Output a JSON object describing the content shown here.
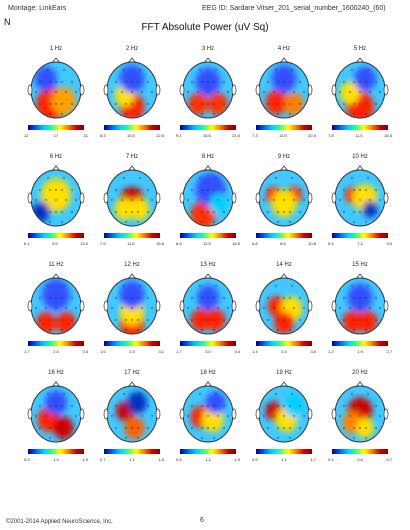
{
  "header": {
    "montage": "Montage: LinkEars",
    "eeg_id": "EEG ID: Sardare Vitser_201_serial_number_1600240_(60)",
    "marker": "N",
    "title": "FFT Absolute Power (uV Sq)"
  },
  "maps": [
    {
      "label": "1 Hz",
      "scale": [
        "12",
        "",
        "17",
        "",
        "21"
      ],
      "spots": [
        {
          "c": "#ff2000",
          "a": 0.4,
          "b": 0.75,
          "r": 0.3
        },
        {
          "c": "#ffa000",
          "a": 0.65,
          "b": 0.7,
          "r": 0.25
        },
        {
          "c": "#3050ff",
          "a": 0.3,
          "b": 0.3,
          "r": 0.22
        }
      ]
    },
    {
      "label": "2 Hz",
      "scale": [
        "8.3",
        "",
        "10.5",
        "",
        "12.6"
      ],
      "spots": [
        {
          "c": "#ff2000",
          "a": 0.5,
          "b": 0.8,
          "r": 0.25
        },
        {
          "c": "#ffe000",
          "a": 0.35,
          "b": 0.6,
          "r": 0.2
        },
        {
          "c": "#3050ff",
          "a": 0.5,
          "b": 0.3,
          "r": 0.25
        }
      ]
    },
    {
      "label": "3 Hz",
      "scale": [
        "9.1",
        "",
        "15.6",
        "",
        "21.0"
      ],
      "spots": [
        {
          "c": "#ff3000",
          "a": 0.3,
          "b": 0.75,
          "r": 0.2
        },
        {
          "c": "#ff3000",
          "a": 0.7,
          "b": 0.75,
          "r": 0.2
        },
        {
          "c": "#3050ff",
          "a": 0.5,
          "b": 0.35,
          "r": 0.25
        }
      ]
    },
    {
      "label": "4 Hz",
      "scale": [
        "7.3",
        "",
        "13.9",
        "",
        "20.5"
      ],
      "spots": [
        {
          "c": "#ff2000",
          "a": 0.35,
          "b": 0.72,
          "r": 0.22
        },
        {
          "c": "#ff8000",
          "a": 0.7,
          "b": 0.75,
          "r": 0.2
        },
        {
          "c": "#3050ff",
          "a": 0.5,
          "b": 0.3,
          "r": 0.25
        }
      ]
    },
    {
      "label": "5 Hz",
      "scale": [
        "7.8",
        "",
        "11.5",
        "",
        "15.5"
      ],
      "spots": [
        {
          "c": "#ff2000",
          "a": 0.5,
          "b": 0.8,
          "r": 0.28
        },
        {
          "c": "#ffe000",
          "a": 0.3,
          "b": 0.55,
          "r": 0.2
        },
        {
          "c": "#3050ff",
          "a": 0.6,
          "b": 0.3,
          "r": 0.22
        }
      ]
    },
    {
      "label": "6 Hz",
      "scale": [
        "6.1",
        "",
        "9.5",
        "",
        "13.0"
      ],
      "spots": [
        {
          "c": "#ff0000",
          "a": 0.5,
          "b": 0.45,
          "r": 0.16
        },
        {
          "c": "#ffe000",
          "a": 0.5,
          "b": 0.45,
          "r": 0.3
        },
        {
          "c": "#0030c0",
          "a": 0.2,
          "b": 0.75,
          "r": 0.18
        }
      ]
    },
    {
      "label": "7 Hz",
      "scale": [
        "7.6",
        "",
        "11.6",
        "",
        "15.6"
      ],
      "spots": [
        {
          "c": "#d00000",
          "a": 0.5,
          "b": 0.55,
          "r": 0.25
        },
        {
          "c": "#ffe000",
          "a": 0.35,
          "b": 0.7,
          "r": 0.2
        },
        {
          "c": "#ffe000",
          "a": 0.65,
          "b": 0.7,
          "r": 0.2
        }
      ]
    },
    {
      "label": "8 Hz",
      "scale": [
        "8.6",
        "",
        "12.5",
        "",
        "16.5"
      ],
      "spots": [
        {
          "c": "#ff3000",
          "a": 0.4,
          "b": 0.8,
          "r": 0.25
        },
        {
          "c": "#3050ff",
          "a": 0.55,
          "b": 0.35,
          "r": 0.3
        },
        {
          "c": "#00d0ff",
          "a": 0.7,
          "b": 0.6,
          "r": 0.18
        }
      ]
    },
    {
      "label": "9 Hz",
      "scale": [
        "6.8",
        "",
        "8.8",
        "",
        "10.8"
      ],
      "spots": [
        {
          "c": "#ff2000",
          "a": 0.3,
          "b": 0.45,
          "r": 0.16
        },
        {
          "c": "#ff2000",
          "a": 0.7,
          "b": 0.45,
          "r": 0.16
        },
        {
          "c": "#ffe000",
          "a": 0.5,
          "b": 0.6,
          "r": 0.25
        }
      ]
    },
    {
      "label": "10 Hz",
      "scale": [
        "5.4",
        "",
        "7.2",
        "",
        "9.0"
      ],
      "spots": [
        {
          "c": "#ff2000",
          "a": 0.35,
          "b": 0.45,
          "r": 0.15
        },
        {
          "c": "#ffe000",
          "a": 0.6,
          "b": 0.5,
          "r": 0.25
        },
        {
          "c": "#0030c0",
          "a": 0.7,
          "b": 0.7,
          "r": 0.15
        }
      ]
    },
    {
      "label": "11 Hz",
      "scale": [
        "1.7",
        "",
        "2.5",
        "",
        "3.4"
      ],
      "spots": [
        {
          "c": "#ff2000",
          "a": 0.3,
          "b": 0.8,
          "r": 0.2
        },
        {
          "c": "#ff2000",
          "a": 0.7,
          "b": 0.8,
          "r": 0.2
        },
        {
          "c": "#3050ff",
          "a": 0.5,
          "b": 0.3,
          "r": 0.28
        }
      ]
    },
    {
      "label": "12 Hz",
      "scale": [
        "1.6",
        "",
        "2.3",
        "",
        "3.1"
      ],
      "spots": [
        {
          "c": "#ff2000",
          "a": 0.5,
          "b": 0.82,
          "r": 0.25
        },
        {
          "c": "#ffe000",
          "a": 0.5,
          "b": 0.6,
          "r": 0.25
        },
        {
          "c": "#3050ff",
          "a": 0.5,
          "b": 0.3,
          "r": 0.25
        }
      ]
    },
    {
      "label": "13 Hz",
      "scale": [
        "1.7",
        "",
        "3.0",
        "",
        "4.4"
      ],
      "spots": [
        {
          "c": "#ff2000",
          "a": 0.35,
          "b": 0.75,
          "r": 0.2
        },
        {
          "c": "#ff2000",
          "a": 0.65,
          "b": 0.75,
          "r": 0.2
        },
        {
          "c": "#3050ff",
          "a": 0.5,
          "b": 0.35,
          "r": 0.22
        }
      ]
    },
    {
      "label": "14 Hz",
      "scale": [
        "1.4",
        "",
        "2.4",
        "",
        "3.5"
      ],
      "spots": [
        {
          "c": "#ff2000",
          "a": 0.35,
          "b": 0.5,
          "r": 0.18
        },
        {
          "c": "#ffe000",
          "a": 0.65,
          "b": 0.55,
          "r": 0.22
        },
        {
          "c": "#ff2000",
          "a": 0.5,
          "b": 0.8,
          "r": 0.2
        }
      ]
    },
    {
      "label": "15 Hz",
      "scale": [
        "1.2",
        "",
        "1.9",
        "",
        "2.7"
      ],
      "spots": [
        {
          "c": "#ff2000",
          "a": 0.35,
          "b": 0.78,
          "r": 0.2
        },
        {
          "c": "#ff2000",
          "a": 0.65,
          "b": 0.78,
          "r": 0.2
        },
        {
          "c": "#3050ff",
          "a": 0.5,
          "b": 0.35,
          "r": 0.25
        }
      ]
    },
    {
      "label": "16 Hz",
      "scale": [
        "0.9",
        "",
        "1.4",
        "",
        "1.9"
      ],
      "spots": [
        {
          "c": "#ff2000",
          "a": 0.35,
          "b": 0.6,
          "r": 0.22
        },
        {
          "c": "#d00000",
          "a": 0.65,
          "b": 0.75,
          "r": 0.2
        },
        {
          "c": "#3050ff",
          "a": 0.5,
          "b": 0.3,
          "r": 0.22
        }
      ]
    },
    {
      "label": "17 Hz",
      "scale": [
        "0.7",
        "",
        "1.1",
        "",
        "1.5"
      ],
      "spots": [
        {
          "c": "#d00000",
          "a": 0.35,
          "b": 0.45,
          "r": 0.17
        },
        {
          "c": "#ff6000",
          "a": 0.55,
          "b": 0.75,
          "r": 0.2
        },
        {
          "c": "#0030c0",
          "a": 0.6,
          "b": 0.3,
          "r": 0.2
        }
      ]
    },
    {
      "label": "18 Hz",
      "scale": [
        "0.5",
        "",
        "1.2",
        "",
        "1.9"
      ],
      "spots": [
        {
          "c": "#ff2000",
          "a": 0.35,
          "b": 0.55,
          "r": 0.2
        },
        {
          "c": "#ffe000",
          "a": 0.6,
          "b": 0.6,
          "r": 0.22
        },
        {
          "c": "#3050ff",
          "a": 0.65,
          "b": 0.3,
          "r": 0.2
        }
      ]
    },
    {
      "label": "19 Hz",
      "scale": [
        "0.5",
        "",
        "1.1",
        "",
        "1.7"
      ],
      "spots": [
        {
          "c": "#d00000",
          "a": 0.3,
          "b": 0.45,
          "r": 0.17
        },
        {
          "c": "#ffe000",
          "a": 0.55,
          "b": 0.6,
          "r": 0.22
        },
        {
          "c": "#00d0ff",
          "a": 0.7,
          "b": 0.35,
          "r": 0.2
        }
      ]
    },
    {
      "label": "20 Hz",
      "scale": [
        "0.4",
        "",
        "0.6",
        "",
        "0.7"
      ],
      "spots": [
        {
          "c": "#d00000",
          "a": 0.5,
          "b": 0.45,
          "r": 0.25
        },
        {
          "c": "#ff8000",
          "a": 0.35,
          "b": 0.65,
          "r": 0.2
        },
        {
          "c": "#ffe000",
          "a": 0.6,
          "b": 0.75,
          "r": 0.18
        }
      ]
    }
  ],
  "footer": {
    "copyright": "©2001-2014 Applied NeuroScience, Inc.",
    "page": "6"
  }
}
